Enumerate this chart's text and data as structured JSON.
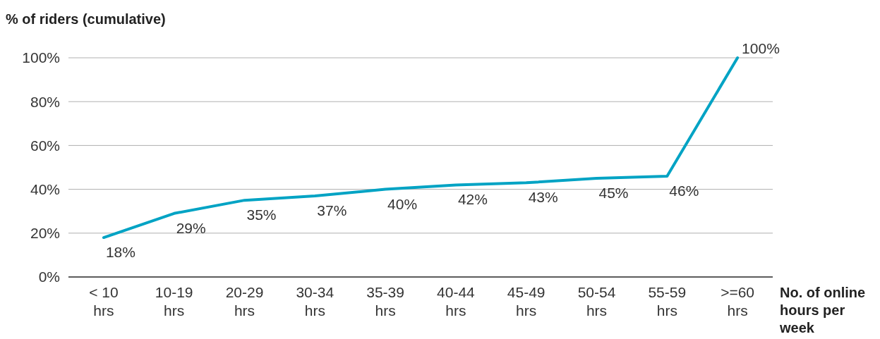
{
  "chart_data": {
    "type": "line",
    "ylabel": "% of riders (cumulative)",
    "xlabel": "No. of online hours per week",
    "categories": [
      "< 10 hrs",
      "10-19 hrs",
      "20-29 hrs",
      "30-34 hrs",
      "35-39 hrs",
      "40-44 hrs",
      "45-49 hrs",
      "50-54 hrs",
      "55-59 hrs",
      ">=60 hrs"
    ],
    "series": [
      {
        "color": "#00a3c4",
        "values": [
          18,
          29,
          35,
          37,
          40,
          42,
          43,
          45,
          46,
          100
        ],
        "value_labels": [
          "18%",
          "29%",
          "35%",
          "37%",
          "40%",
          "42%",
          "43%",
          "45%",
          "46%",
          "100%"
        ]
      }
    ],
    "ylim": [
      0,
      100
    ],
    "yticks": [
      {
        "value": 0,
        "label": "0%"
      },
      {
        "value": 20,
        "label": "20%"
      },
      {
        "value": 40,
        "label": "40%"
      },
      {
        "value": 60,
        "label": "60%"
      },
      {
        "value": 80,
        "label": "80%"
      },
      {
        "value": 100,
        "label": "100%"
      }
    ],
    "grid": "y",
    "marker": "none",
    "line_style": "solid"
  }
}
